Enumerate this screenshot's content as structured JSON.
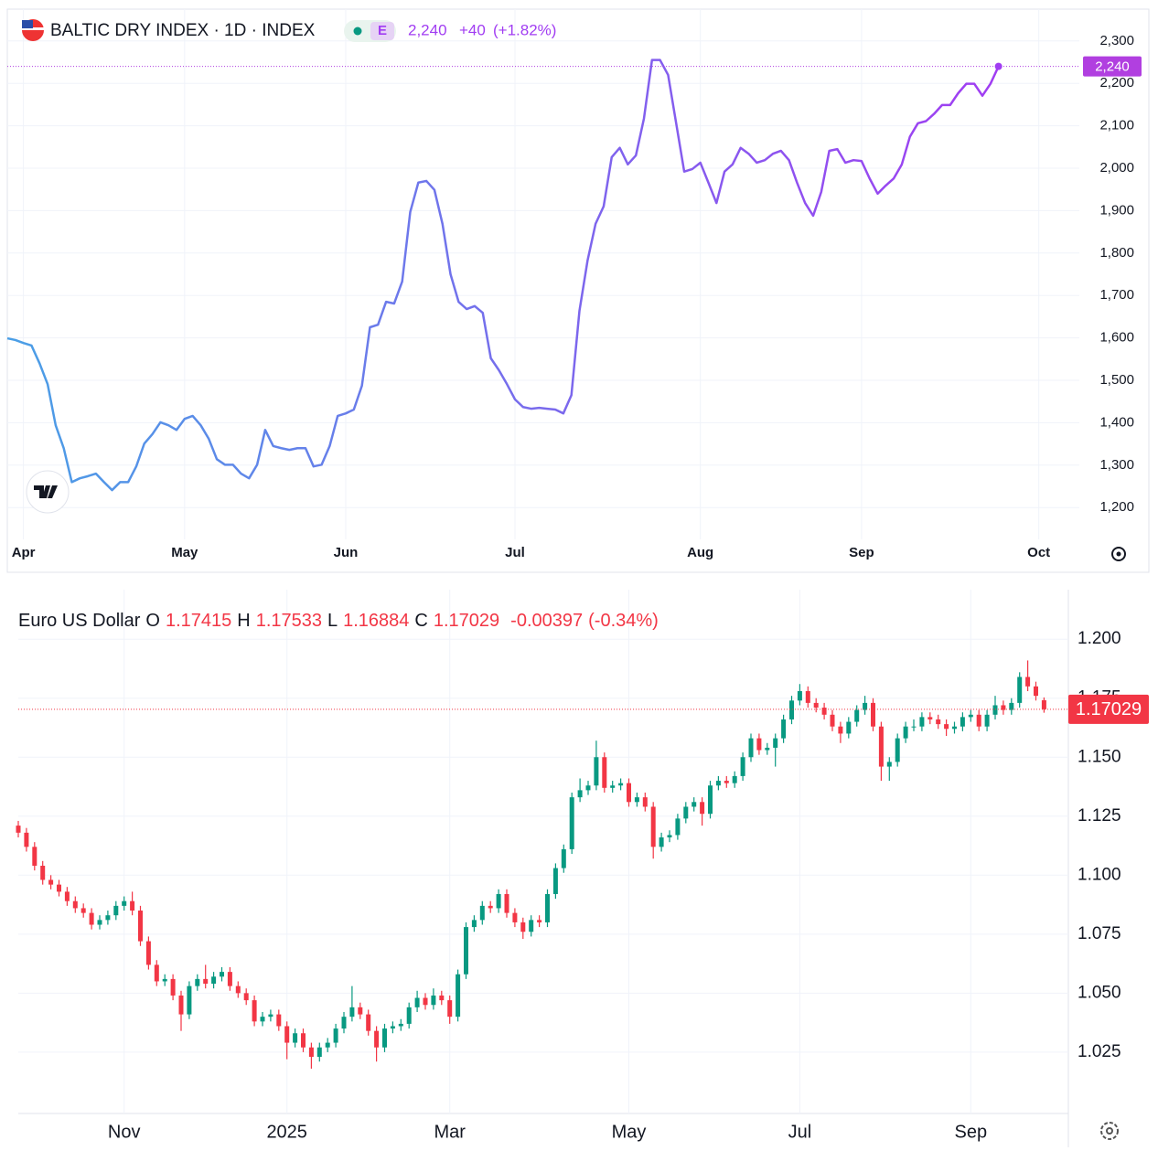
{
  "chart_data": [
    {
      "type": "line",
      "title": "BALTIC DRY INDEX · 1D · INDEX",
      "badge": "E",
      "last_label": "2,240",
      "change": "+40",
      "change_pct": "(+1.82%)",
      "categories": [
        null,
        null,
        "Apr",
        null,
        null,
        null,
        null,
        null,
        null,
        null,
        null,
        null,
        null,
        null,
        null,
        null,
        null,
        null,
        null,
        null,
        null,
        null,
        "May",
        null,
        null,
        null,
        null,
        null,
        null,
        null,
        null,
        null,
        null,
        null,
        null,
        null,
        null,
        null,
        null,
        null,
        null,
        null,
        "Jun",
        null,
        null,
        null,
        null,
        null,
        null,
        null,
        null,
        null,
        null,
        null,
        null,
        null,
        null,
        null,
        null,
        null,
        null,
        null,
        null,
        "Jul",
        null,
        null,
        null,
        null,
        null,
        null,
        null,
        null,
        null,
        null,
        null,
        null,
        null,
        null,
        null,
        null,
        null,
        null,
        null,
        null,
        null,
        null,
        "Aug",
        null,
        null,
        null,
        null,
        null,
        null,
        null,
        null,
        null,
        null,
        null,
        null,
        null,
        null,
        null,
        null,
        null,
        null,
        null,
        "Sep",
        null,
        null,
        null,
        null,
        null,
        null,
        null,
        null,
        null,
        null,
        null,
        null,
        null,
        null,
        null,
        null,
        null,
        null,
        null,
        null,
        null,
        "Oct",
        null,
        null,
        null,
        null,
        null
      ],
      "values": [
        1599,
        1595,
        1588,
        1582,
        1540,
        1491,
        1394,
        1340,
        1260,
        1269,
        1274,
        1280,
        1260,
        1241,
        1260,
        1260,
        1297,
        1351,
        1373,
        1401,
        1394,
        1383,
        1409,
        1416,
        1394,
        1362,
        1314,
        1301,
        1301,
        1280,
        1269,
        1301,
        1383,
        1345,
        1340,
        1336,
        1340,
        1340,
        1297,
        1301,
        1345,
        1416,
        1422,
        1431,
        1487,
        1625,
        1631,
        1685,
        1681,
        1733,
        1897,
        1966,
        1970,
        1949,
        1869,
        1750,
        1685,
        1668,
        1675,
        1659,
        1552,
        1524,
        1491,
        1455,
        1437,
        1433,
        1435,
        1433,
        1431,
        1422,
        1465,
        1664,
        1782,
        1869,
        1910,
        2026,
        2048,
        2009,
        2030,
        2117,
        2255,
        2255,
        2220,
        2106,
        1992,
        1998,
        2013,
        1966,
        1918,
        1992,
        2009,
        2048,
        2034,
        2013,
        2019,
        2034,
        2041,
        2019,
        1966,
        1918,
        1888,
        1944,
        2041,
        2045,
        2013,
        2019,
        2017,
        1976,
        1940,
        1959,
        1976,
        2009,
        2074,
        2106,
        2111,
        2128,
        2149,
        2149,
        2177,
        2199,
        2199,
        2171,
        2199,
        2240,
        null,
        null,
        null,
        null,
        null,
        null,
        null,
        null,
        null,
        null
      ],
      "color_gradient": [
        "#4a9fe6",
        "#a13df2"
      ],
      "price_line_color": "#b13fe0",
      "ylim": [
        1125,
        2375
      ],
      "yticks": [
        {
          "value": 1200,
          "label": "1,200"
        },
        {
          "value": 1300,
          "label": "1,300"
        },
        {
          "value": 1400,
          "label": "1,400"
        },
        {
          "value": 1500,
          "label": "1,500"
        },
        {
          "value": 1600,
          "label": "1,600"
        },
        {
          "value": 1700,
          "label": "1,700"
        },
        {
          "value": 1800,
          "label": "1,800"
        },
        {
          "value": 1900,
          "label": "1,900"
        },
        {
          "value": 2000,
          "label": "2,000"
        },
        {
          "value": 2100,
          "label": "2,100"
        },
        {
          "value": 2200,
          "label": "2,200"
        },
        {
          "value": 2300,
          "label": "2,300"
        }
      ],
      "grid": true
    },
    {
      "type": "candlestick",
      "title": "Euro US Dollar",
      "ohlc_labels": [
        "O",
        "H",
        "L",
        "C"
      ],
      "change": -0.00397,
      "change_pct": "(-0.34%)",
      "categories": [
        null,
        null,
        null,
        null,
        null,
        null,
        null,
        null,
        null,
        null,
        null,
        null,
        null,
        "Nov",
        null,
        null,
        null,
        null,
        null,
        null,
        null,
        null,
        null,
        null,
        null,
        null,
        null,
        null,
        null,
        null,
        null,
        null,
        null,
        "2025",
        null,
        null,
        null,
        null,
        null,
        null,
        null,
        null,
        null,
        null,
        null,
        null,
        null,
        null,
        null,
        null,
        null,
        null,
        null,
        "Mar",
        null,
        null,
        null,
        null,
        null,
        null,
        null,
        null,
        null,
        null,
        null,
        null,
        null,
        null,
        null,
        null,
        null,
        null,
        null,
        null,
        null,
        "May",
        null,
        null,
        null,
        null,
        null,
        null,
        null,
        null,
        null,
        null,
        null,
        null,
        null,
        null,
        null,
        null,
        null,
        null,
        null,
        null,
        "Jul",
        null,
        null,
        null,
        null,
        null,
        null,
        null,
        null,
        null,
        null,
        null,
        null,
        null,
        null,
        null,
        null,
        null,
        null,
        null,
        null,
        "Sep",
        null,
        null,
        null,
        null,
        null,
        null,
        null,
        null,
        null
      ],
      "open": [
        1.121,
        1.118,
        1.112,
        1.104,
        1.098,
        1.096,
        1.093,
        1.089,
        1.086,
        1.084,
        1.079,
        1.081,
        1.083,
        1.087,
        1.089,
        1.085,
        1.072,
        1.062,
        1.055,
        1.056,
        1.049,
        1.041,
        1.053,
        1.056,
        1.054,
        1.057,
        1.059,
        1.053,
        1.05,
        1.047,
        1.038,
        1.04,
        1.041,
        1.036,
        1.029,
        1.033,
        1.027,
        1.023,
        1.027,
        1.029,
        1.035,
        1.04,
        1.044,
        1.041,
        1.034,
        1.027,
        1.035,
        1.036,
        1.037,
        1.044,
        1.048,
        1.045,
        1.049,
        1.047,
        1.04,
        1.058,
        1.078,
        1.081,
        1.087,
        1.086,
        1.092,
        1.084,
        1.08,
        1.076,
        1.081,
        1.08,
        1.092,
        1.103,
        1.111,
        1.133,
        1.136,
        1.138,
        1.15,
        1.137,
        1.138,
        1.139,
        1.131,
        1.133,
        1.129,
        1.112,
        1.116,
        1.117,
        1.124,
        1.129,
        1.131,
        1.126,
        1.138,
        1.14,
        1.139,
        1.142,
        1.15,
        1.158,
        1.153,
        1.154,
        1.158,
        1.166,
        1.174,
        1.178,
        1.173,
        1.171,
        1.168,
        1.163,
        1.16,
        1.165,
        1.17,
        1.173,
        1.163,
        1.146,
        1.148,
        1.158,
        1.163,
        1.163,
        1.167,
        1.166,
        1.164,
        1.162,
        1.163,
        1.167,
        1.168,
        1.163,
        1.168,
        1.172,
        1.17,
        1.173,
        1.184,
        1.18,
        1.17415
      ],
      "high": [
        1.123,
        1.12,
        1.114,
        1.106,
        1.1,
        1.098,
        1.095,
        1.091,
        1.088,
        1.086,
        1.083,
        1.085,
        1.089,
        1.091,
        1.093,
        1.087,
        1.074,
        1.064,
        1.058,
        1.058,
        1.051,
        1.055,
        1.058,
        1.062,
        1.059,
        1.061,
        1.061,
        1.055,
        1.052,
        1.049,
        1.042,
        1.043,
        1.043,
        1.038,
        1.035,
        1.035,
        1.029,
        1.029,
        1.031,
        1.037,
        1.042,
        1.053,
        1.046,
        1.043,
        1.036,
        1.037,
        1.038,
        1.039,
        1.046,
        1.051,
        1.05,
        1.052,
        1.051,
        1.049,
        1.06,
        1.08,
        1.083,
        1.089,
        1.089,
        1.094,
        1.094,
        1.086,
        1.082,
        1.083,
        1.083,
        1.094,
        1.105,
        1.113,
        1.135,
        1.141,
        1.14,
        1.157,
        1.152,
        1.14,
        1.141,
        1.141,
        1.135,
        1.135,
        1.131,
        1.118,
        1.119,
        1.126,
        1.131,
        1.133,
        1.133,
        1.14,
        1.142,
        1.142,
        1.144,
        1.152,
        1.16,
        1.16,
        1.156,
        1.16,
        1.168,
        1.176,
        1.181,
        1.18,
        1.175,
        1.173,
        1.17,
        1.165,
        1.167,
        1.172,
        1.176,
        1.175,
        1.165,
        1.15,
        1.16,
        1.165,
        1.166,
        1.169,
        1.169,
        1.168,
        1.166,
        1.165,
        1.169,
        1.17,
        1.17,
        1.17,
        1.176,
        1.174,
        1.175,
        1.186,
        1.191,
        1.182,
        1.17533
      ],
      "low": [
        1.116,
        1.11,
        1.102,
        1.096,
        1.094,
        1.091,
        1.087,
        1.084,
        1.082,
        1.077,
        1.077,
        1.079,
        1.081,
        1.085,
        1.083,
        1.07,
        1.06,
        1.053,
        1.053,
        1.047,
        1.034,
        1.039,
        1.051,
        1.052,
        1.052,
        1.055,
        1.051,
        1.048,
        1.045,
        1.036,
        1.036,
        1.038,
        1.034,
        1.022,
        1.027,
        1.025,
        1.018,
        1.021,
        1.025,
        1.027,
        1.033,
        1.038,
        1.039,
        1.032,
        1.021,
        1.025,
        1.033,
        1.034,
        1.035,
        1.042,
        1.043,
        1.043,
        1.045,
        1.037,
        1.038,
        1.056,
        1.076,
        1.079,
        1.084,
        1.084,
        1.082,
        1.078,
        1.073,
        1.074,
        1.078,
        1.078,
        1.09,
        1.101,
        1.109,
        1.131,
        1.134,
        1.136,
        1.135,
        1.135,
        1.136,
        1.129,
        1.129,
        1.127,
        1.107,
        1.11,
        1.114,
        1.115,
        1.122,
        1.127,
        1.121,
        1.124,
        1.136,
        1.137,
        1.137,
        1.14,
        1.148,
        1.151,
        1.151,
        1.146,
        1.156,
        1.164,
        1.172,
        1.171,
        1.169,
        1.166,
        1.161,
        1.156,
        1.158,
        1.163,
        1.168,
        1.161,
        1.14,
        1.14,
        1.146,
        1.156,
        1.161,
        1.161,
        1.164,
        1.162,
        1.159,
        1.16,
        1.161,
        1.165,
        1.161,
        1.161,
        1.166,
        1.168,
        1.168,
        1.171,
        1.178,
        1.174,
        1.16884
      ],
      "close": [
        1.118,
        1.112,
        1.104,
        1.098,
        1.096,
        1.093,
        1.089,
        1.086,
        1.084,
        1.079,
        1.081,
        1.083,
        1.087,
        1.089,
        1.085,
        1.072,
        1.062,
        1.055,
        1.056,
        1.049,
        1.041,
        1.053,
        1.056,
        1.054,
        1.057,
        1.059,
        1.053,
        1.05,
        1.047,
        1.038,
        1.04,
        1.041,
        1.036,
        1.029,
        1.033,
        1.027,
        1.023,
        1.027,
        1.029,
        1.035,
        1.04,
        1.044,
        1.041,
        1.034,
        1.027,
        1.035,
        1.036,
        1.037,
        1.044,
        1.048,
        1.045,
        1.049,
        1.047,
        1.04,
        1.058,
        1.078,
        1.081,
        1.087,
        1.086,
        1.092,
        1.084,
        1.08,
        1.076,
        1.081,
        1.08,
        1.092,
        1.103,
        1.111,
        1.133,
        1.136,
        1.138,
        1.15,
        1.137,
        1.138,
        1.139,
        1.131,
        1.133,
        1.129,
        1.112,
        1.116,
        1.117,
        1.124,
        1.129,
        1.131,
        1.126,
        1.138,
        1.14,
        1.139,
        1.142,
        1.15,
        1.158,
        1.153,
        1.154,
        1.158,
        1.166,
        1.174,
        1.178,
        1.173,
        1.171,
        1.168,
        1.163,
        1.16,
        1.165,
        1.17,
        1.173,
        1.163,
        1.146,
        1.148,
        1.158,
        1.163,
        1.163,
        1.167,
        1.166,
        1.164,
        1.162,
        1.163,
        1.167,
        1.168,
        1.163,
        1.168,
        1.172,
        1.17,
        1.173,
        1.184,
        1.18,
        1.176,
        1.17029
      ],
      "up_color": "#089981",
      "down_color": "#f23645",
      "price_line_color": "#f23645",
      "ylim": [
        0.999,
        1.221
      ],
      "yticks": [
        1.025,
        {
          "value": 1.05,
          "label": "1.050"
        },
        1.075,
        {
          "value": 1.1,
          "label": "1.100"
        },
        1.125,
        {
          "value": 1.15,
          "label": "1.150"
        },
        1.175,
        {
          "value": 1.2,
          "label": "1.200"
        }
      ],
      "grid": true
    }
  ]
}
